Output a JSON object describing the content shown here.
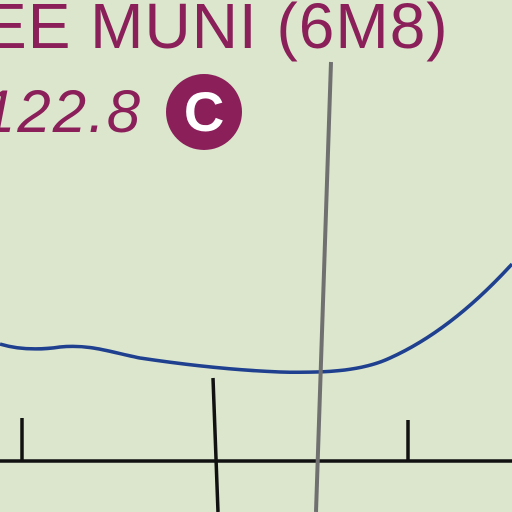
{
  "airport": {
    "name": "EE MUNI (6M8)",
    "frequency": "122.8",
    "ctaf_symbol": "C"
  },
  "colors": {
    "background": "#dbe6cd",
    "airport_text": "#8a1f5a",
    "river": "#1f3f8f",
    "grid_line": "#111111",
    "meridian_line": "#707070"
  }
}
